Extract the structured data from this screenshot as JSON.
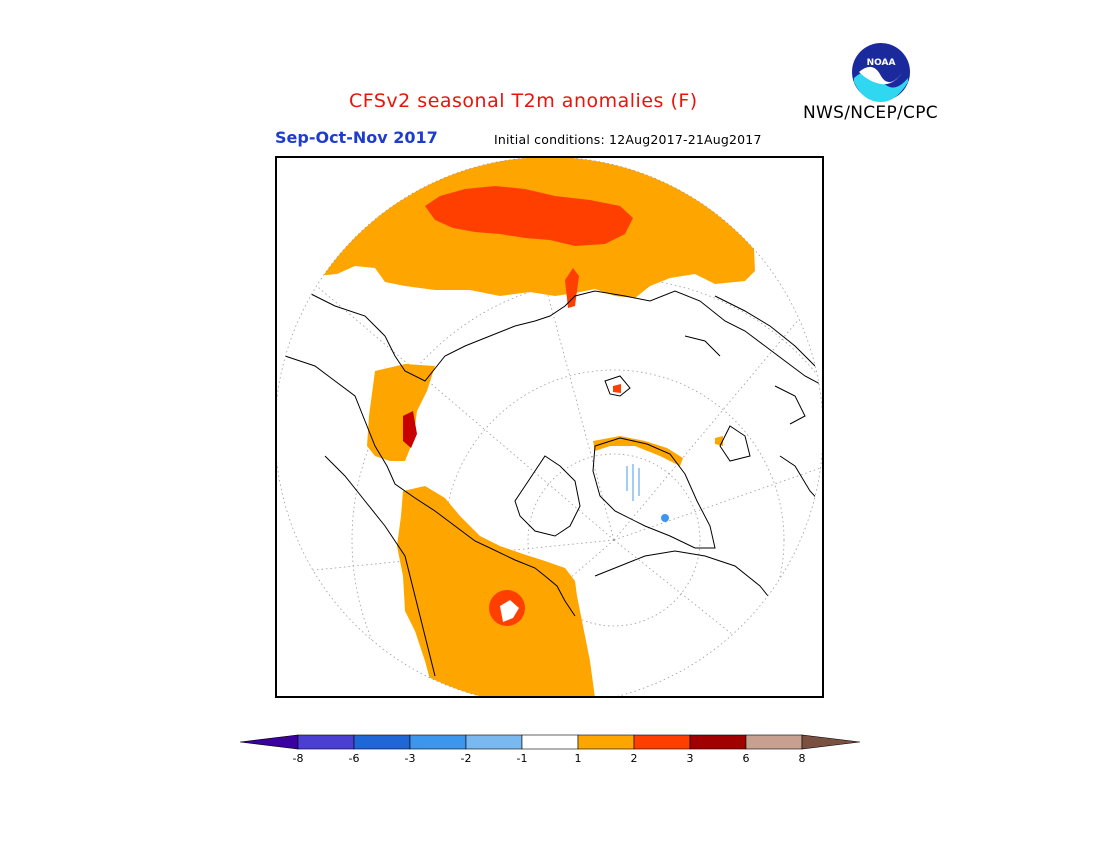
{
  "header": {
    "title": "CFSv2 seasonal T2m anomalies (F)",
    "season": "Sep-Oct-Nov 2017",
    "initial_conditions": "Initial conditions: 12Aug2017-21Aug2017",
    "agency": "NWS/NCEP/CPC",
    "logo_text": "NOAA"
  },
  "colors": {
    "title": "#e8140a",
    "season": "#1e3ccf",
    "anom_1_2": "#ffa500",
    "anom_2_3": "#ff3f00",
    "anom_3_6": "#c80000",
    "anom_neg_1_neg_2": "#7ab8f0",
    "land_outline": "#000000"
  },
  "colorbar": {
    "labels": [
      "-8",
      "-6",
      "-3",
      "-2",
      "-1",
      "1",
      "2",
      "3",
      "6",
      "8"
    ],
    "colors": [
      "#3a00a0",
      "#4a3fd0",
      "#1f66d6",
      "#3c96ee",
      "#7ab8f0",
      "#ffffff",
      "#ffa500",
      "#ff3f00",
      "#a00000",
      "#c8a090",
      "#7a5040"
    ]
  }
}
